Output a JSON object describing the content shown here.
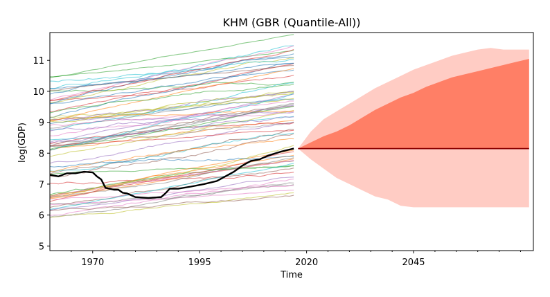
{
  "chart_data": {
    "type": "line",
    "title": "KHM (GBR (Quantile-All))",
    "xlabel": "Time",
    "ylabel": "log(GDP)",
    "xlim": [
      1960,
      2073
    ],
    "ylim": [
      4.85,
      11.9
    ],
    "x_ticks": [
      1970,
      1995,
      2020,
      2045
    ],
    "y_ticks": [
      5,
      6,
      7,
      8,
      9,
      10,
      11
    ],
    "grid": false,
    "legend": "none",
    "highlight_series": {
      "name": "KHM",
      "color": "#000000",
      "x": [
        1960,
        1962,
        1964,
        1966,
        1968,
        1970,
        1971,
        1972,
        1973,
        1975,
        1976,
        1977,
        1978,
        1980,
        1983,
        1986,
        1987,
        1988,
        1990,
        1993,
        1996,
        1999,
        2001,
        2003,
        2005,
        2007,
        2009,
        2011,
        2014,
        2017
      ],
      "y": [
        7.3,
        7.25,
        7.35,
        7.35,
        7.4,
        7.38,
        7.25,
        7.15,
        6.88,
        6.82,
        6.82,
        6.72,
        6.7,
        6.58,
        6.55,
        6.58,
        6.7,
        6.85,
        6.85,
        6.92,
        7.0,
        7.1,
        7.25,
        7.4,
        7.6,
        7.75,
        7.8,
        7.92,
        8.05,
        8.15
      ]
    },
    "background_series_count": 70,
    "forecast": {
      "x": [
        2018,
        2021,
        2024,
        2027,
        2030,
        2033,
        2036,
        2039,
        2042,
        2045,
        2048,
        2051,
        2054,
        2057,
        2060,
        2063,
        2066,
        2069,
        2072
      ],
      "median": [
        8.15,
        8.15,
        8.15,
        8.15,
        8.15,
        8.15,
        8.15,
        8.15,
        8.15,
        8.15,
        8.15,
        8.15,
        8.15,
        8.15,
        8.15,
        8.15,
        8.15,
        8.15,
        8.15
      ],
      "inner_upper": [
        8.15,
        8.35,
        8.55,
        8.7,
        8.9,
        9.15,
        9.4,
        9.6,
        9.8,
        9.95,
        10.15,
        10.3,
        10.45,
        10.55,
        10.65,
        10.75,
        10.85,
        10.95,
        11.05
      ],
      "outer_upper": [
        8.15,
        8.7,
        9.1,
        9.35,
        9.6,
        9.85,
        10.1,
        10.3,
        10.5,
        10.7,
        10.85,
        11.0,
        11.15,
        11.25,
        11.35,
        11.4,
        11.35,
        11.35,
        11.35
      ],
      "outer_lower": [
        8.15,
        7.8,
        7.5,
        7.2,
        7.0,
        6.8,
        6.6,
        6.5,
        6.3,
        6.25,
        6.25,
        6.25,
        6.25,
        6.25,
        6.25,
        6.25,
        6.25,
        6.25,
        6.25
      ],
      "inner_color": "#ff7f66",
      "outer_color": "#ffccc4",
      "median_color": "#8b0000"
    }
  }
}
